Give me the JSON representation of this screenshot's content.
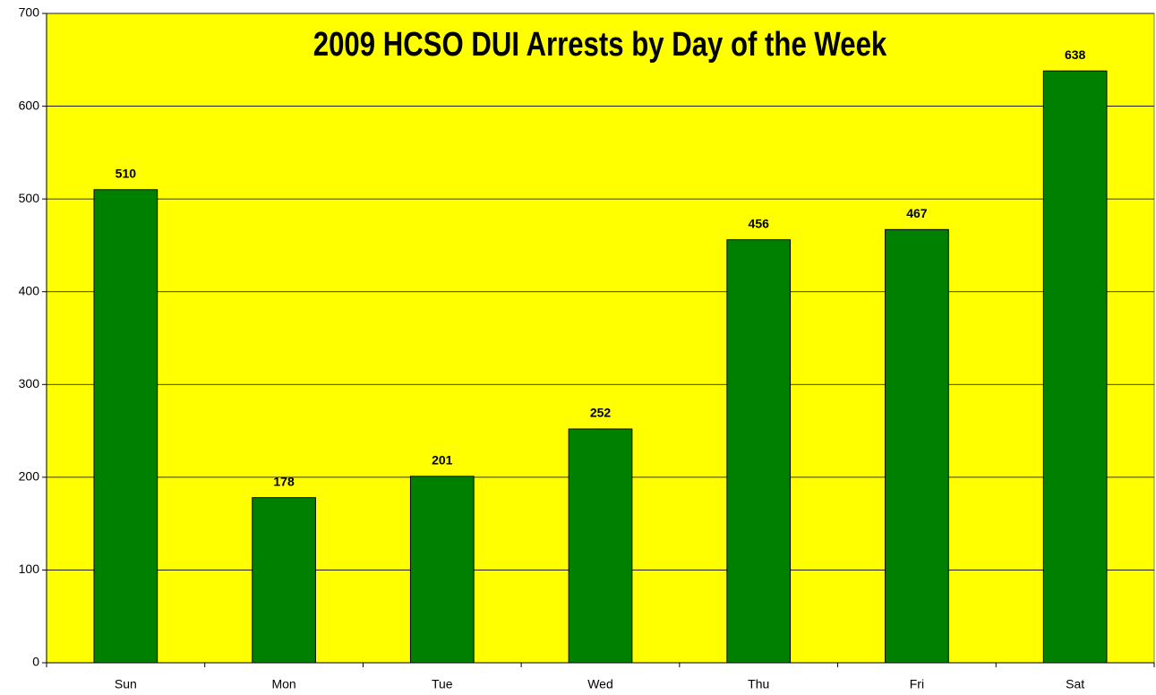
{
  "chart_data": {
    "type": "bar",
    "title": "2009 HCSO DUI Arrests by Day of the Week",
    "categories": [
      "Sun",
      "Mon",
      "Tue",
      "Wed",
      "Thu",
      "Fri",
      "Sat"
    ],
    "values": [
      510,
      178,
      201,
      252,
      456,
      467,
      638
    ],
    "color": "#008000",
    "background": "#ffff00",
    "ylim": [
      0,
      700
    ],
    "yticks": [
      0,
      100,
      200,
      300,
      400,
      500,
      600,
      700
    ],
    "grid": true
  }
}
